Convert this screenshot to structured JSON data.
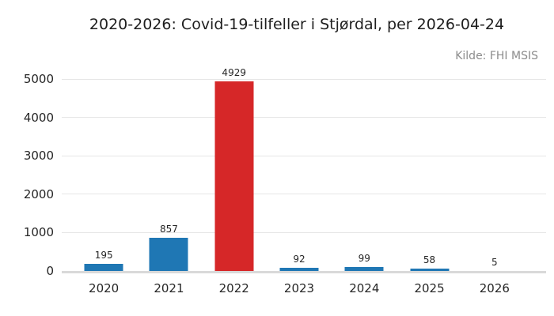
{
  "chart": {
    "title": "2020-2026: Covid-19-tilfeller i Stjørdal, per 2026-04-24",
    "source": "Kilde: FHI MSIS"
  },
  "chart_data": {
    "type": "bar",
    "title": "2020-2026: Covid-19-tilfeller i Stjørdal, per 2026-04-24",
    "source_annotation": "Kilde: FHI MSIS",
    "categories": [
      "2020",
      "2021",
      "2022",
      "2023",
      "2024",
      "2025",
      "2026"
    ],
    "values": [
      195,
      857,
      4929,
      92,
      99,
      58,
      5
    ],
    "value_labels_shown": true,
    "bar_colors": [
      "#1f77b4",
      "#1f77b4",
      "#d62728",
      "#1f77b4",
      "#1f77b4",
      "#1f77b4",
      "#1f77b4"
    ],
    "default_bar_color": "#1f77b4",
    "highlight_bar_color": "#d62728",
    "highlighted_category": "2022",
    "xlabel": "",
    "ylabel": "",
    "ylim": [
      0,
      5000
    ],
    "yticks": [
      0,
      1000,
      2000,
      3000,
      4000,
      5000
    ],
    "grid": "horizontal",
    "gridline_color": "#e6e6e6",
    "axis_line_color": "#d9d9d9",
    "legend": "none",
    "background_color": "#ffffff",
    "text_color": "#262626"
  }
}
